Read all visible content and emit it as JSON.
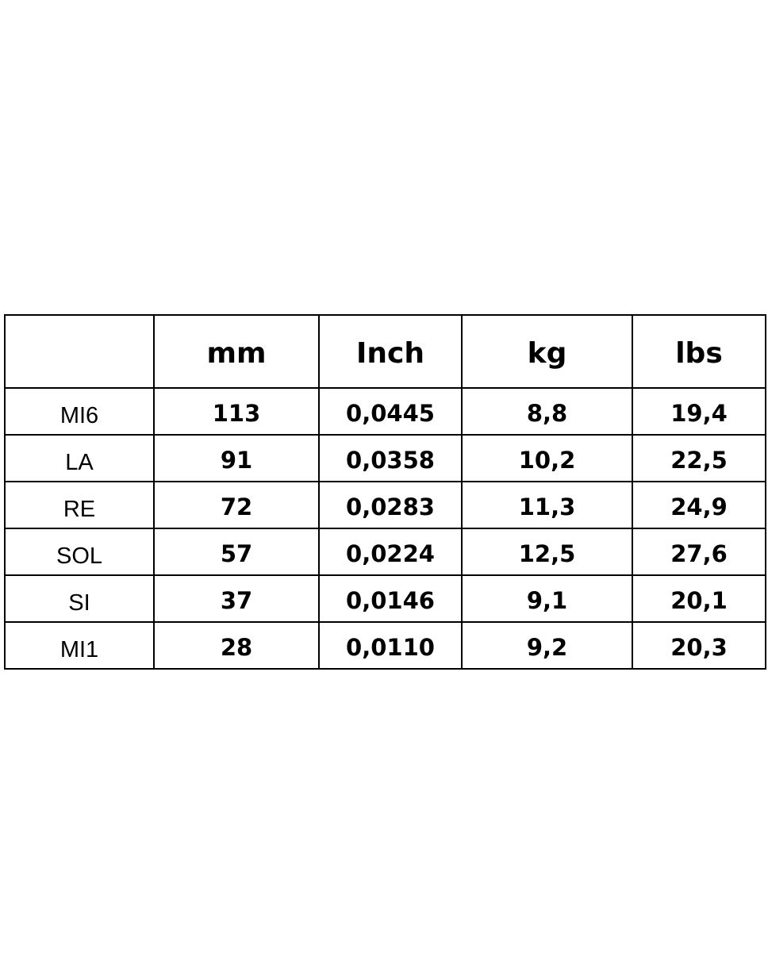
{
  "table": {
    "header": [
      "mm",
      "Inch",
      "kg",
      "lbs"
    ],
    "rows": [
      [
        "MI6",
        "113",
        "0,0445",
        "8,8",
        "19,4"
      ],
      [
        "LA",
        "91",
        "0,0358",
        "10,2",
        "22,5"
      ],
      [
        "RE",
        "72",
        "0,0283",
        "11,3",
        "24,9"
      ],
      [
        "SOL",
        "57",
        "0,0224",
        "12,5",
        "27,6"
      ],
      [
        "SI",
        "37",
        "0,0146",
        "9,1",
        "20,1"
      ],
      [
        "MI1",
        "28",
        "0,0110",
        "9,2",
        "20,3"
      ]
    ]
  }
}
